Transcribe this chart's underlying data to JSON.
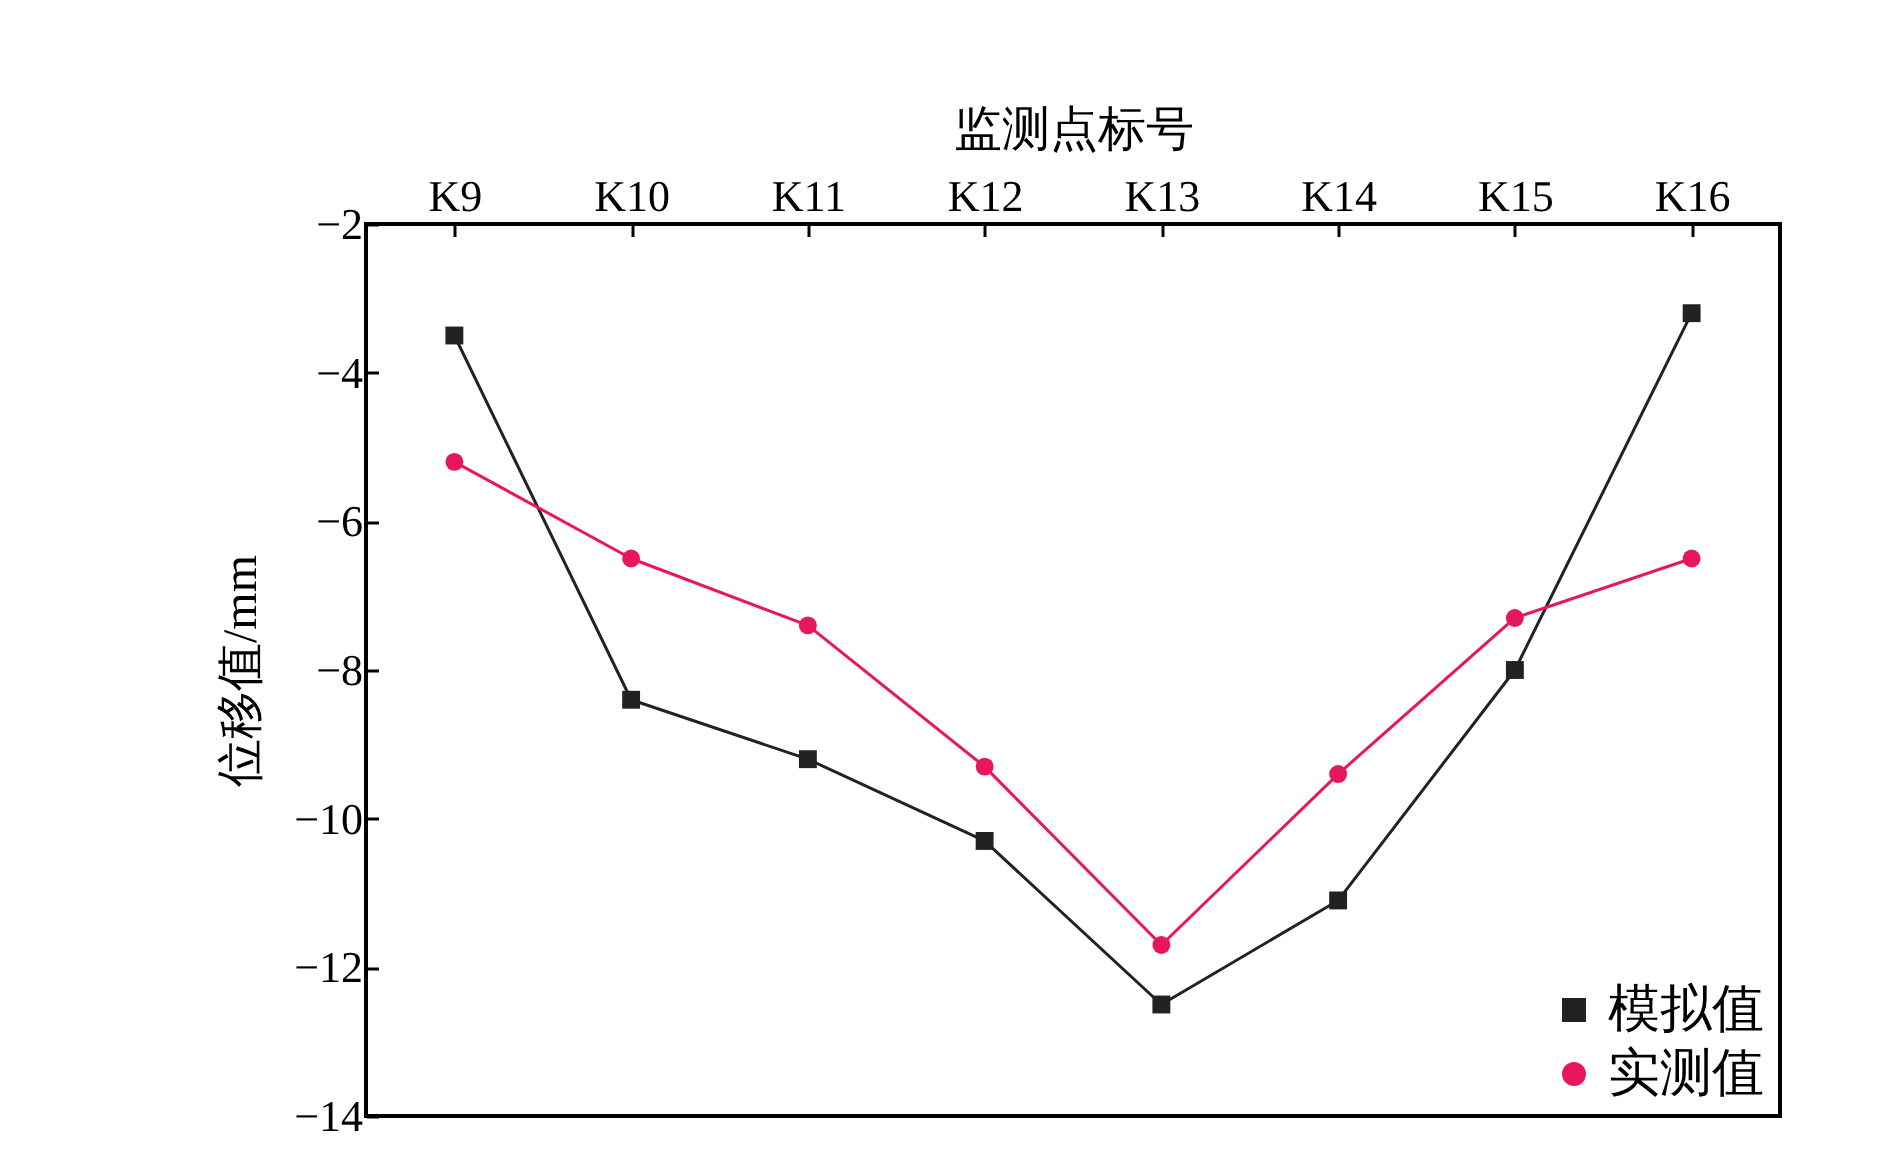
{
  "chart_data": {
    "type": "line",
    "xlabel": "监测点标号",
    "ylabel": "位移值/mm",
    "categories": [
      "K9",
      "K10",
      "K11",
      "K12",
      "K13",
      "K14",
      "K15",
      "K16"
    ],
    "series": [
      {
        "name": "模拟值",
        "color": "#222222",
        "marker": "square",
        "values": [
          -3.5,
          -8.4,
          -9.2,
          -10.3,
          -12.5,
          -11.1,
          -8.0,
          -3.2
        ]
      },
      {
        "name": "实测值",
        "color": "#e8175d",
        "marker": "circle",
        "values": [
          -5.2,
          -6.5,
          -7.4,
          -9.3,
          -11.7,
          -9.4,
          -7.3,
          -6.5
        ]
      }
    ],
    "ylim": [
      -14,
      -2
    ],
    "yticks": [
      -14,
      -12,
      -10,
      -8,
      -6,
      -4,
      -2
    ],
    "grid": false,
    "legend": "bottom right",
    "line_style": "solid"
  }
}
